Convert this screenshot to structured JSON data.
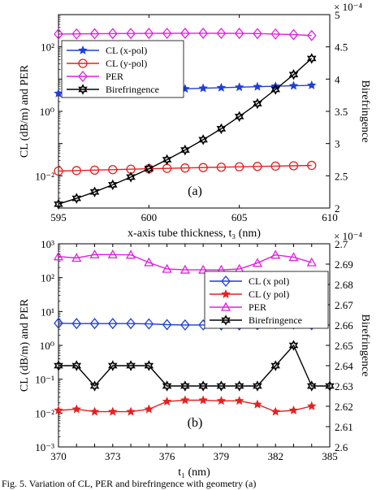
{
  "caption": "Fig. 5. Variation of CL, PER and birefringence with geometry (a)",
  "chart_data": [
    {
      "type": "line",
      "panel_label": "(a)",
      "xlabel": "x-axis tube thickness, t₃ (nm)",
      "ylabel_left": "CL (dB/m) and PER",
      "ylabel_right": "Birefringence",
      "right_exponent": "× 10⁻⁴",
      "xlim": [
        595,
        610
      ],
      "xticks": [
        595,
        600,
        605,
        610
      ],
      "ylim_left": [
        0.001,
        1000
      ],
      "yscale_left": "log",
      "yticks_left": [
        0.01,
        1,
        100
      ],
      "ytick_labels_left": [
        "10⁻²",
        "10⁰",
        "10²"
      ],
      "ylim_right": [
        2,
        5
      ],
      "yticks_right": [
        2,
        2.5,
        3,
        3.5,
        4,
        4.5,
        5
      ],
      "yticks_right_labels": [
        "2",
        "2.5",
        "3",
        "3.5",
        "4",
        "4.5",
        "5"
      ],
      "legend_position": "upper-left",
      "series": [
        {
          "name": "CL (x-pol)",
          "axis": "left",
          "color": "#1f3fd6",
          "marker": "star",
          "x": [
            595,
            596,
            597,
            598,
            599,
            600,
            601,
            602,
            603,
            604,
            605,
            606,
            607,
            608,
            609
          ],
          "values": [
            3.6,
            3.8,
            4.0,
            4.2,
            4.4,
            4.6,
            4.8,
            5.0,
            5.2,
            5.4,
            5.6,
            5.8,
            6.0,
            6.2,
            6.4
          ]
        },
        {
          "name": "CL (y-pol)",
          "axis": "left",
          "color": "#e62020",
          "marker": "circle",
          "x": [
            595,
            596,
            597,
            598,
            599,
            600,
            601,
            602,
            603,
            604,
            605,
            606,
            607,
            608,
            609
          ],
          "values": [
            0.014,
            0.0145,
            0.015,
            0.0155,
            0.016,
            0.0165,
            0.017,
            0.0175,
            0.018,
            0.0185,
            0.019,
            0.0195,
            0.02,
            0.0205,
            0.021
          ]
        },
        {
          "name": "PER",
          "axis": "left",
          "color": "#e020e0",
          "marker": "diamond",
          "x": [
            595,
            596,
            597,
            598,
            599,
            600,
            601,
            602,
            603,
            604,
            605,
            606,
            607,
            608,
            609
          ],
          "values": [
            250,
            252,
            255,
            258,
            260,
            262,
            263,
            264,
            264,
            263,
            262,
            258,
            250,
            240,
            225
          ]
        },
        {
          "name": "Birefringence",
          "axis": "right",
          "color": "#000000",
          "marker": "hexagram",
          "x": [
            595,
            596,
            597,
            598,
            599,
            600,
            601,
            602,
            603,
            604,
            605,
            606,
            607,
            608,
            609
          ],
          "values": [
            2.06,
            2.15,
            2.25,
            2.36,
            2.48,
            2.61,
            2.75,
            2.9,
            3.06,
            3.23,
            3.42,
            3.62,
            3.84,
            4.07,
            4.32
          ]
        }
      ]
    },
    {
      "type": "line",
      "panel_label": "(b)",
      "xlabel": "t₁ (nm)",
      "ylabel_left": "CL (dB/m) and PER",
      "ylabel_right": "Birefringence",
      "right_exponent": "× 10⁻⁴",
      "xlim": [
        370,
        385
      ],
      "xticks": [
        370,
        373,
        376,
        379,
        382,
        385
      ],
      "xtick_labels": [
        "370",
        "371",
        "372",
        "373",
        "374",
        "375",
        "376",
        "377",
        "378",
        "379",
        "380",
        "381",
        "382",
        "383",
        "384",
        "385"
      ],
      "xtick_values": [
        370,
        371,
        372,
        373,
        374,
        375,
        376,
        377,
        378,
        379,
        380,
        381,
        382,
        383,
        384,
        385
      ],
      "ylim_left": [
        0.001,
        1000
      ],
      "yscale_left": "log",
      "yticks_left": [
        0.001,
        0.01,
        0.1,
        1,
        10,
        100,
        1000
      ],
      "ytick_labels_left": [
        "10⁻³",
        "10⁻²",
        "10⁻¹",
        "10⁰",
        "10¹",
        "10²",
        "10³"
      ],
      "ylim_right": [
        2.6,
        2.7
      ],
      "yticks_right": [
        2.6,
        2.61,
        2.62,
        2.63,
        2.64,
        2.65,
        2.66,
        2.67,
        2.68,
        2.69,
        2.7
      ],
      "yticks_right_labels": [
        "2.6",
        "2.61",
        "2.62",
        "2.63",
        "2.64",
        "2.65",
        "2.66",
        "2.67",
        "2.68",
        "2.69",
        "2.7"
      ],
      "legend_position": "center-right",
      "series": [
        {
          "name": "CL (x pol)",
          "axis": "left",
          "color": "#1f3fd6",
          "marker": "diamond",
          "x": [
            370,
            371,
            372,
            373,
            374,
            375,
            376,
            377,
            378,
            379,
            380,
            381,
            382,
            383,
            384
          ],
          "values": [
            4.5,
            4.4,
            4.4,
            4.4,
            4.4,
            4.3,
            4.1,
            4.0,
            4.0,
            4.0,
            4.0,
            4.1,
            4.4,
            4.3,
            4.1
          ]
        },
        {
          "name": "CL (y pol)",
          "axis": "left",
          "color": "#e62020",
          "marker": "star",
          "x": [
            370,
            371,
            372,
            373,
            374,
            375,
            376,
            377,
            378,
            379,
            380,
            381,
            382,
            383,
            384
          ],
          "values": [
            0.012,
            0.013,
            0.011,
            0.011,
            0.011,
            0.013,
            0.022,
            0.024,
            0.024,
            0.023,
            0.023,
            0.018,
            0.011,
            0.012,
            0.016
          ]
        },
        {
          "name": "PER",
          "axis": "left",
          "color": "#e020e0",
          "marker": "triangle",
          "x": [
            370,
            371,
            372,
            373,
            374,
            375,
            376,
            377,
            378,
            379,
            380,
            381,
            382,
            383,
            384
          ],
          "values": [
            420,
            380,
            480,
            480,
            470,
            280,
            180,
            170,
            170,
            170,
            180,
            270,
            470,
            400,
            280
          ]
        },
        {
          "name": "Birefringence",
          "axis": "right",
          "color": "#000000",
          "marker": "hexagram",
          "x": [
            370,
            371,
            372,
            373,
            374,
            375,
            376,
            377,
            378,
            379,
            380,
            381,
            382,
            383,
            384,
            385
          ],
          "values": [
            2.64,
            2.64,
            2.63,
            2.64,
            2.64,
            2.64,
            2.63,
            2.63,
            2.63,
            2.63,
            2.63,
            2.63,
            2.64,
            2.65,
            2.63,
            2.63
          ]
        }
      ]
    }
  ]
}
